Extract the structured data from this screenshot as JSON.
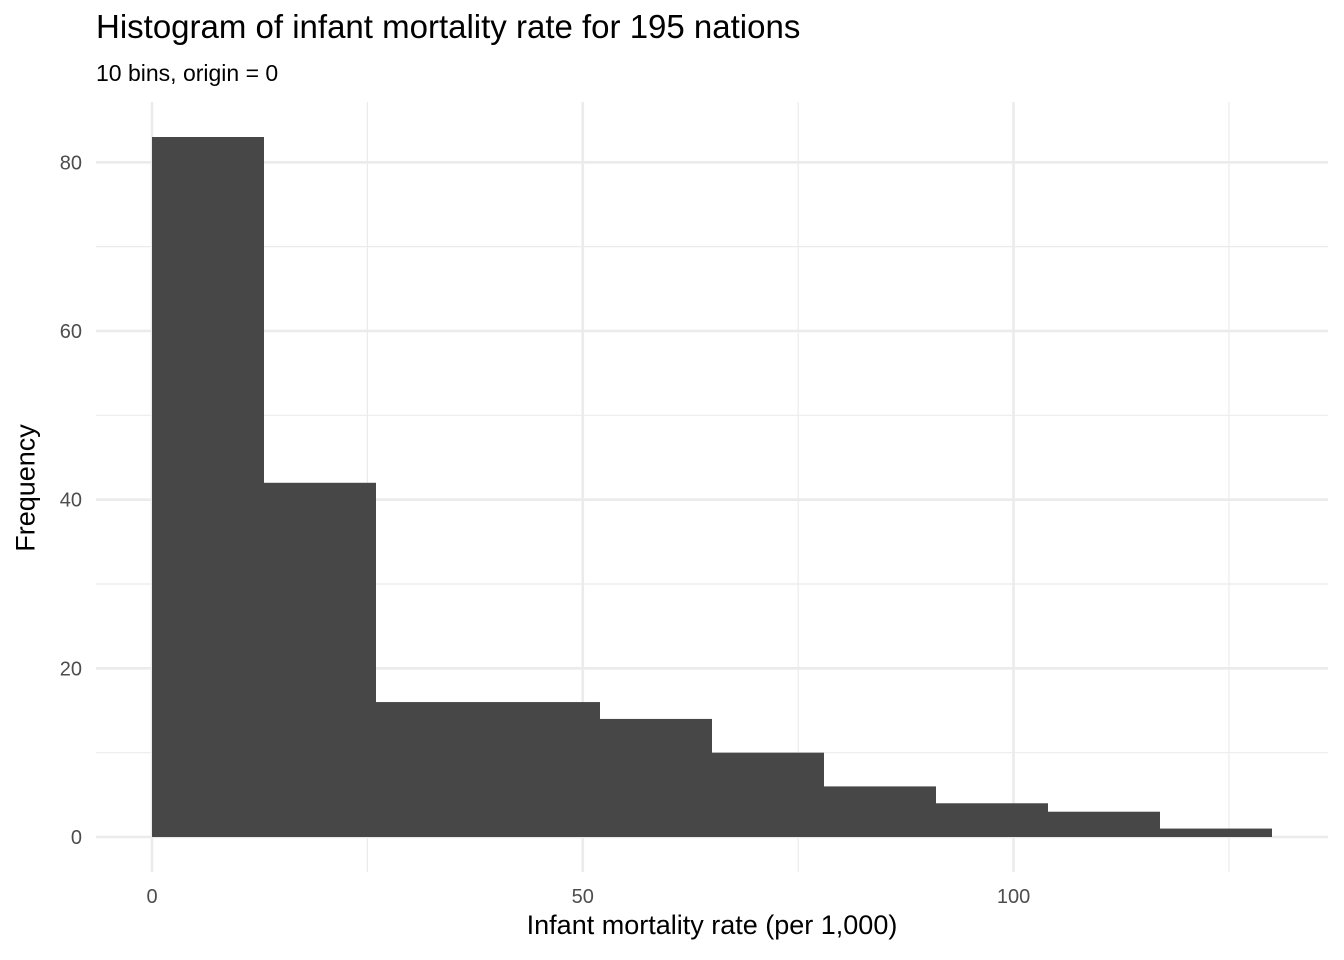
{
  "chart_data": {
    "type": "bar",
    "title": "Histogram of infant mortality rate for 195 nations",
    "subtitle": "10 bins, origin = 0",
    "xlabel": "Infant mortality rate (per 1,000)",
    "ylabel": "Frequency",
    "bins": [
      {
        "x0": 0,
        "x1": 13,
        "count": 83
      },
      {
        "x0": 13,
        "x1": 26,
        "count": 42
      },
      {
        "x0": 26,
        "x1": 39,
        "count": 16
      },
      {
        "x0": 39,
        "x1": 52,
        "count": 16
      },
      {
        "x0": 52,
        "x1": 65,
        "count": 14
      },
      {
        "x0": 65,
        "x1": 78,
        "count": 10
      },
      {
        "x0": 78,
        "x1": 91,
        "count": 6
      },
      {
        "x0": 91,
        "x1": 104,
        "count": 4
      },
      {
        "x0": 104,
        "x1": 117,
        "count": 3
      },
      {
        "x0": 117,
        "x1": 130,
        "count": 1
      }
    ],
    "xlim": [
      -6.5,
      136.5
    ],
    "ylim": [
      -4.15,
      87.15
    ],
    "x_major_ticks": [
      0,
      50,
      100
    ],
    "x_tick_labels": [
      "0",
      "50",
      "100"
    ],
    "x_minor_ticks": [
      25,
      75,
      125
    ],
    "y_major_ticks": [
      0,
      20,
      40,
      60,
      80
    ],
    "y_tick_labels": [
      "0",
      "20",
      "40",
      "60",
      "80"
    ],
    "y_minor_ticks": [
      10,
      30,
      50,
      70
    ],
    "grid": true,
    "legend": "none",
    "bar_color": "#474747",
    "grid_color": "#ebebeb"
  }
}
